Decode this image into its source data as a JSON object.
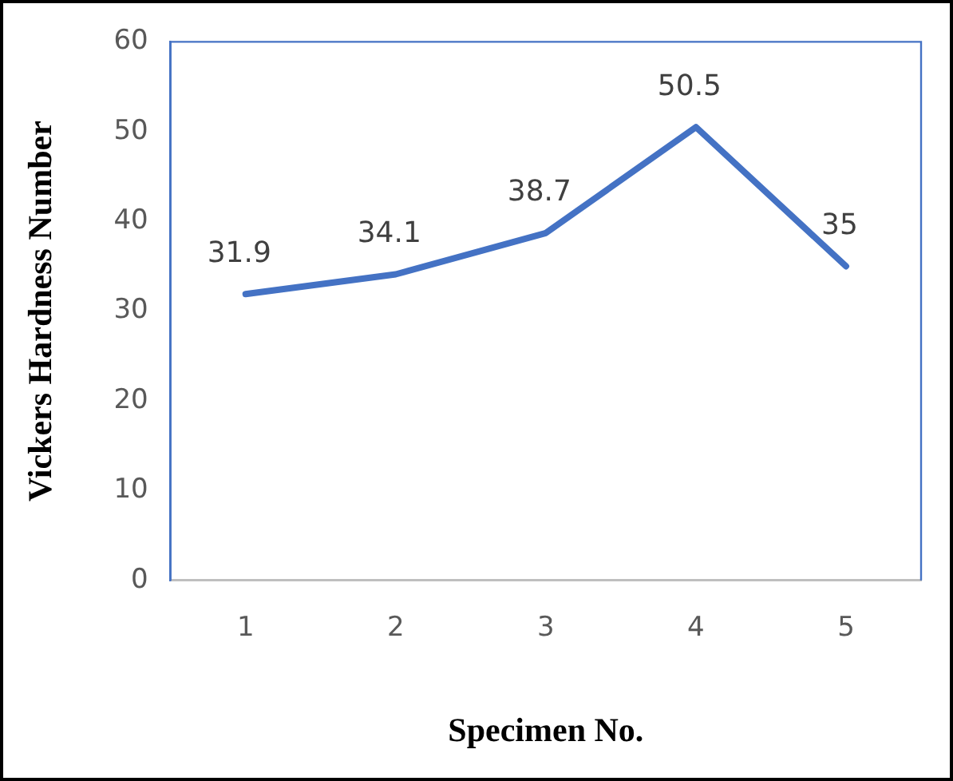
{
  "chart_data": {
    "type": "line",
    "xlabel": "Specimen No.",
    "ylabel": "Vickers Hardness Number",
    "categories": [
      "1",
      "2",
      "3",
      "4",
      "5"
    ],
    "series": [
      {
        "color": "#4472c4",
        "values": [
          31.9,
          34.1,
          38.7,
          50.5,
          35
        ]
      }
    ],
    "ylim": [
      0,
      60
    ],
    "yticks": [
      0,
      10,
      20,
      30,
      40,
      50,
      60
    ],
    "grid": false,
    "legend": false,
    "marker": "none",
    "line_style": "solid",
    "data_labels": true
  }
}
